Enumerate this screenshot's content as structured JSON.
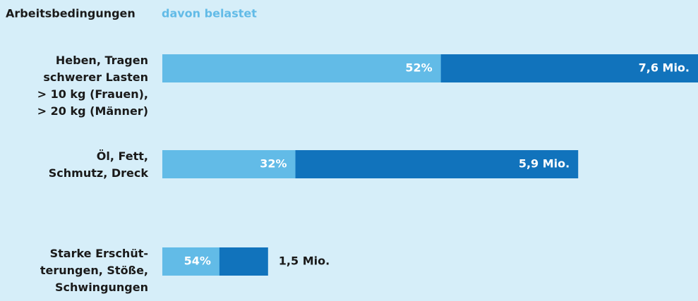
{
  "chart_data": {
    "type": "bar",
    "category_label": "Arbeitsbedingungen",
    "categories": [
      "Heben, Tragen\nschwerer Lasten\n> 10 kg (Frauen),\n> 20 kg (Männer)",
      "Öl, Fett,\nSchmutz, Dreck",
      "Starke Erschüt-\nterungen, Stöße,\nSchwingungen"
    ],
    "values": [
      7.6,
      5.9,
      1.5
    ],
    "value_labels": [
      "7,6 Mio.",
      "5,9 Mio.",
      "1,5 Mio."
    ],
    "color": "#1173bc",
    "share": {
      "name": "davon belastet",
      "values": [
        52,
        32,
        54
      ],
      "value_labels": [
        "52%",
        "32%",
        "54%"
      ],
      "color": "#62bbe7"
    }
  }
}
